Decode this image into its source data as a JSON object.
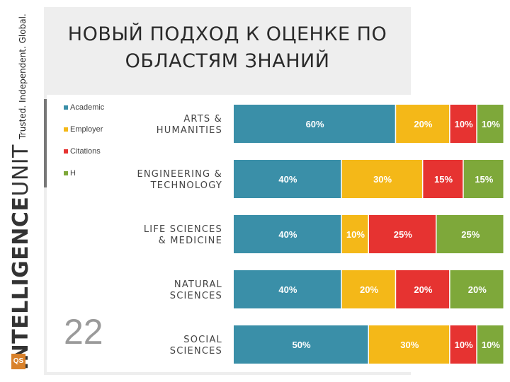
{
  "sidebar": {
    "tagline": "Trusted. Independent. Global.",
    "brand_bold": "INTELLIGENCE",
    "brand_light": "UNIT",
    "logo_mark": "QS"
  },
  "slide": {
    "title_line1": "НОВЫЙ ПОДХОД К ОЦЕНКЕ ПО",
    "title_line2": "ОБЛАСТЯМ ЗНАНИЙ",
    "page_number": "22"
  },
  "colors": {
    "academic": "#3a8fa8",
    "employer": "#f4b818",
    "citations": "#e63331",
    "h": "#7ea83a"
  },
  "chart_data": {
    "type": "bar",
    "orientation": "horizontal",
    "stacked": true,
    "categories": [
      [
        "ARTS &",
        "HUMANITIES"
      ],
      [
        "ENGINEERING &",
        "TECHNOLOGY"
      ],
      [
        "LIFE SCIENCES",
        "& MEDICINE"
      ],
      [
        "NATURAL",
        "SCIENCES"
      ],
      [
        "SOCIAL",
        "SCIENCES"
      ]
    ],
    "series": [
      {
        "name": "Academic",
        "color": "#3a8fa8",
        "values": [
          60,
          40,
          40,
          40,
          50
        ]
      },
      {
        "name": "Employer",
        "color": "#f4b818",
        "values": [
          20,
          30,
          10,
          20,
          30
        ]
      },
      {
        "name": "Citations",
        "color": "#e63331",
        "values": [
          10,
          15,
          25,
          20,
          10
        ]
      },
      {
        "name": "H",
        "color": "#7ea83a",
        "values": [
          10,
          15,
          25,
          20,
          10
        ]
      }
    ],
    "value_suffix": "%",
    "xlim": [
      0,
      100
    ],
    "legend_position": "top-left",
    "grid": false
  }
}
